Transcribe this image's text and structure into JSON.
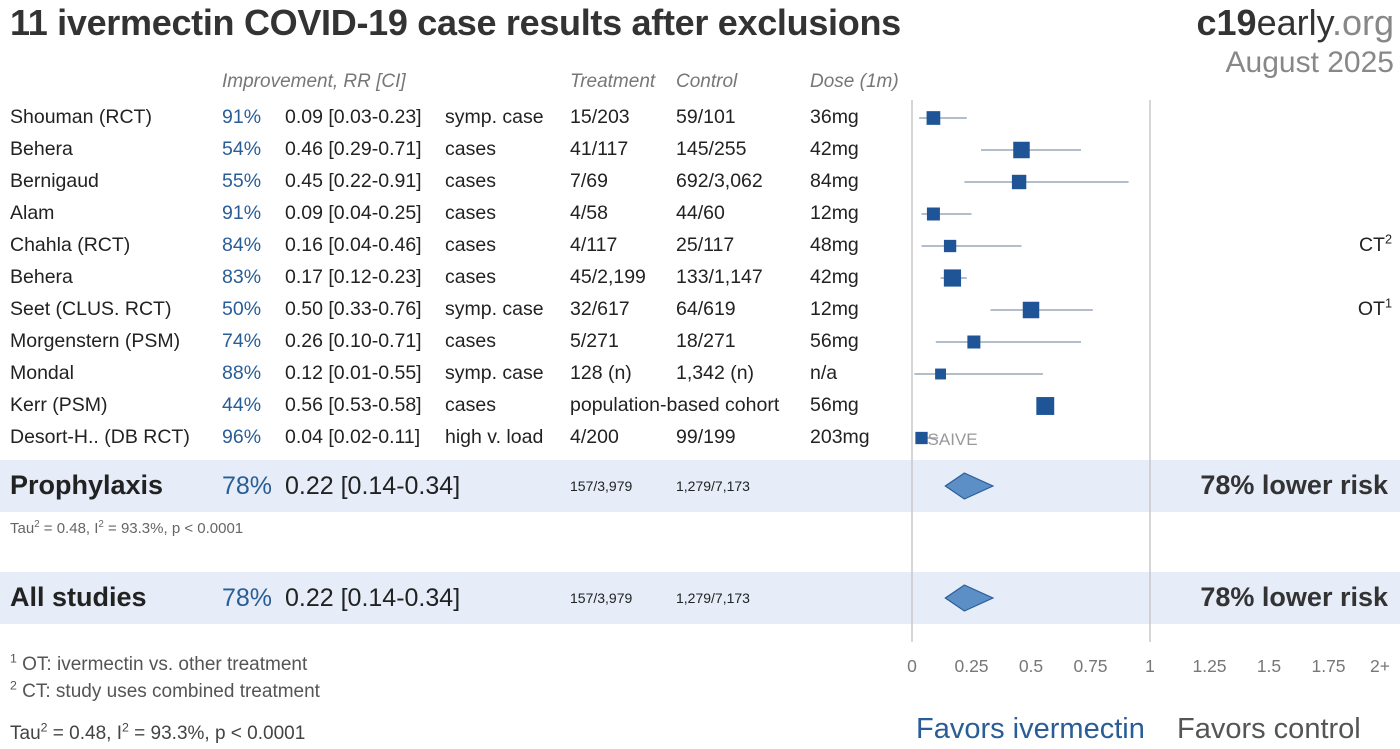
{
  "header": {
    "title": "11 ivermectin COVID-19 case results after exclusions",
    "logo_bold": "c19",
    "logo_mid": "early",
    "logo_tld": ".org",
    "date": "August 2025"
  },
  "columns": {
    "improvement": "Improvement, RR [CI]",
    "treatment": "Treatment",
    "control": "Control",
    "dose": "Dose (1m)"
  },
  "chart_data": {
    "type": "forest",
    "x_axis": {
      "ticks": [
        "0",
        "0.25",
        "0.5",
        "0.75",
        "1",
        "1.25",
        "1.5",
        "1.75",
        "2+"
      ],
      "xlim": [
        0,
        2
      ],
      "null_line": 1
    },
    "studies": [
      {
        "name": "Shouman (RCT)",
        "improvement": "91%",
        "rr_text": "0.09 [0.03-0.23]",
        "outcome": "symp. case",
        "treatment": "15/203",
        "control": "59/101",
        "dose": "36mg",
        "note": "",
        "note_sup": "",
        "rr": 0.09,
        "lo": 0.03,
        "hi": 0.23,
        "weight": 0.55
      },
      {
        "name": "Behera",
        "improvement": "54%",
        "rr_text": "0.46 [0.29-0.71]",
        "outcome": "cases",
        "treatment": "41/117",
        "control": "145/255",
        "dose": "42mg",
        "note": "",
        "note_sup": "",
        "rr": 0.46,
        "lo": 0.29,
        "hi": 0.71,
        "weight": 0.75
      },
      {
        "name": "Bernigaud",
        "improvement": "55%",
        "rr_text": "0.45 [0.22-0.91]",
        "outcome": "cases",
        "treatment": "7/69",
        "control": "692/3,062",
        "dose": "84mg",
        "note": "",
        "note_sup": "",
        "rr": 0.45,
        "lo": 0.22,
        "hi": 0.91,
        "weight": 0.6
      },
      {
        "name": "Alam",
        "improvement": "91%",
        "rr_text": "0.09 [0.04-0.25]",
        "outcome": "cases",
        "treatment": "4/58",
        "control": "44/60",
        "dose": "12mg",
        "note": "",
        "note_sup": "",
        "rr": 0.09,
        "lo": 0.04,
        "hi": 0.25,
        "weight": 0.5
      },
      {
        "name": "Chahla (RCT)",
        "improvement": "84%",
        "rr_text": "0.16 [0.04-0.46]",
        "outcome": "cases",
        "treatment": "4/117",
        "control": "25/117",
        "dose": "48mg",
        "note": "CT",
        "note_sup": "2",
        "rr": 0.16,
        "lo": 0.04,
        "hi": 0.46,
        "weight": 0.45
      },
      {
        "name": "Behera",
        "improvement": "83%",
        "rr_text": "0.17 [0.12-0.23]",
        "outcome": "cases",
        "treatment": "45/2,199",
        "control": "133/1,147",
        "dose": "42mg",
        "note": "",
        "note_sup": "",
        "rr": 0.17,
        "lo": 0.12,
        "hi": 0.23,
        "weight": 0.8
      },
      {
        "name": "Seet (CLUS. RCT)",
        "improvement": "50%",
        "rr_text": "0.50 [0.33-0.76]",
        "outcome": "symp. case",
        "treatment": "32/617",
        "control": "64/619",
        "dose": "12mg",
        "note": "OT",
        "note_sup": "1",
        "rr": 0.5,
        "lo": 0.33,
        "hi": 0.76,
        "weight": 0.75
      },
      {
        "name": "Morgenstern (PSM)",
        "improvement": "74%",
        "rr_text": "0.26 [0.10-0.71]",
        "outcome": "cases",
        "treatment": "5/271",
        "control": "18/271",
        "dose": "56mg",
        "note": "",
        "note_sup": "",
        "rr": 0.26,
        "lo": 0.1,
        "hi": 0.71,
        "weight": 0.5
      },
      {
        "name": "Mondal",
        "improvement": "88%",
        "rr_text": "0.12 [0.01-0.55]",
        "outcome": "symp. case",
        "treatment": "128 (n)",
        "control": "1,342 (n)",
        "dose": "n/a",
        "note": "",
        "note_sup": "",
        "rr": 0.12,
        "lo": 0.01,
        "hi": 0.55,
        "weight": 0.35
      },
      {
        "name": "Kerr (PSM)",
        "improvement": "44%",
        "rr_text": "0.56 [0.53-0.58]",
        "outcome": "cases",
        "treatment": "population-based cohort",
        "control": "",
        "dose": "56mg",
        "note": "",
        "note_sup": "",
        "rr": 0.56,
        "lo": 0.53,
        "hi": 0.58,
        "weight": 0.85
      },
      {
        "name": "Desort-H.. (DB RCT)",
        "improvement": "96%",
        "rr_text": "0.04 [0.02-0.11]",
        "outcome": "high v. load",
        "treatment": "4/200",
        "control": "99/199",
        "dose": "203mg",
        "note": "",
        "note_sup": "",
        "rr": 0.04,
        "lo": 0.02,
        "hi": 0.11,
        "weight": 0.45,
        "marker_label": "SAIVE"
      }
    ],
    "summaries": [
      {
        "name": "Prophylaxis",
        "improvement": "78%",
        "rr_text": "0.22 [0.14-0.34]",
        "treatment": "157/3,979",
        "control": "1,279/7,173",
        "summary": "78% lower risk",
        "rr": 0.22,
        "lo": 0.14,
        "hi": 0.34
      },
      {
        "name": "All studies",
        "improvement": "78%",
        "rr_text": "0.22 [0.14-0.34]",
        "treatment": "157/3,979",
        "control": "1,279/7,173",
        "summary": "78% lower risk",
        "rr": 0.22,
        "lo": 0.14,
        "hi": 0.34
      }
    ],
    "heterogeneity_small": {
      "tau_pre": "Tau",
      "tau_sup": "2",
      "mid": " = 0.48, I",
      "i_sup": "2",
      "post": " = 93.3%, p < 0.0001"
    },
    "colors": {
      "marker": "#1f5596",
      "whisker": "#9aa8bb",
      "diamond": "#5b8fc5",
      "diamond_edge": "#2a5d98",
      "band": "#e6edf8",
      "axis_line": "#c8c8c8"
    }
  },
  "footnotes": [
    {
      "num": "1",
      "text": " OT: ivermectin vs. other treatment"
    },
    {
      "num": "2",
      "text": " CT: study uses combined treatment"
    }
  ],
  "heterogeneity": {
    "tau_pre": "Tau",
    "tau_sup": "2",
    "mid": " = 0.48, I",
    "i_sup": "2",
    "post": " = 93.3%, p < 0.0001"
  },
  "favors": {
    "left": "Favors ivermectin",
    "right": "Favors control"
  }
}
